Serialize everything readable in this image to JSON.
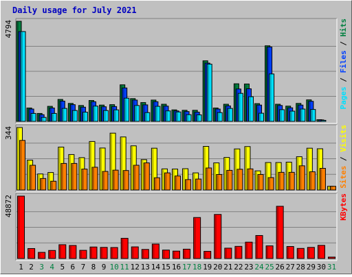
{
  "chart_data": {
    "type": "bar",
    "title": "Daily usage for July 2021",
    "categories": [
      "1",
      "2",
      "3",
      "4",
      "5",
      "6",
      "7",
      "8",
      "9",
      "10",
      "11",
      "12",
      "13",
      "14",
      "15",
      "16",
      "17",
      "18",
      "19",
      "20",
      "21",
      "22",
      "23",
      "24",
      "25",
      "26",
      "27",
      "28",
      "29",
      "30",
      "31"
    ],
    "weekend_days": [
      "3",
      "4",
      "10",
      "11",
      "17",
      "18",
      "24",
      "25",
      "31"
    ],
    "ylim_labels": {
      "top": "4794",
      "mid": "344",
      "bottom": "48872"
    },
    "legend_top": [
      "Pages",
      "Files",
      "Hits"
    ],
    "legend_mid": [
      "Sites",
      "Visits"
    ],
    "legend_bottom": [
      "KBytes"
    ],
    "grid": true,
    "panels": [
      {
        "name": "top",
        "max": 4794,
        "series": [
          {
            "name": "Hits",
            "color": "#008040",
            "values": [
              4794,
              640,
              380,
              720,
              1050,
              860,
              760,
              1000,
              780,
              800,
              1750,
              1090,
              900,
              1020,
              820,
              550,
              530,
              530,
              2900,
              640,
              820,
              1800,
              1790,
              850,
              3620,
              820,
              730,
              860,
              1030,
              80,
              0
            ]
          },
          {
            "name": "Files",
            "color": "#0040ff",
            "values": [
              4300,
              590,
              320,
              640,
              970,
              800,
              680,
              940,
              700,
              710,
              1600,
              1020,
              790,
              940,
              730,
              500,
              470,
              440,
              2790,
              590,
              740,
              1550,
              1560,
              780,
              3560,
              760,
              650,
              780,
              960,
              70,
              0
            ]
          },
          {
            "name": "Pages",
            "color": "#00e0ff",
            "values": [
              4300,
              380,
              190,
              380,
              620,
              520,
              440,
              730,
              520,
              550,
              1110,
              760,
              420,
              720,
              500,
              450,
              320,
              310,
              2740,
              420,
              620,
              1340,
              1180,
              390,
              2270,
              560,
              490,
              590,
              570,
              50,
              0
            ]
          }
        ]
      },
      {
        "name": "mid",
        "max": 344,
        "series": [
          {
            "name": "Visits",
            "color": "#ffff00",
            "values": [
              344,
              164,
              88,
              96,
              236,
              195,
              178,
              267,
              231,
              313,
              292,
              243,
              167,
              230,
              116,
              115,
              117,
              94,
              240,
              149,
              179,
              226,
              239,
              105,
              151,
              151,
              153,
              183,
              230,
              227,
              20
            ]
          },
          {
            "name": "Sites",
            "color": "#ff8000",
            "values": [
              273,
              136,
              63,
              48,
              146,
              146,
              115,
              125,
              102,
              109,
              107,
              136,
              149,
              67,
              94,
              77,
              57,
              60,
              121,
              85,
              108,
              114,
              116,
              85,
              68,
              97,
              97,
              133,
              100,
              119,
              20
            ]
          }
        ]
      },
      {
        "name": "bottom",
        "max": 48872,
        "series": [
          {
            "name": "KBytes",
            "color": "#ff0000",
            "values": [
              48872,
              7800,
              4800,
              6300,
              10800,
              10200,
              6400,
              9000,
              8700,
              8600,
              15800,
              9100,
              7100,
              11300,
              6600,
              5800,
              7300,
              32100,
              5600,
              34500,
              8100,
              9500,
              12800,
              18000,
              9900,
              40900,
              9400,
              7900,
              8700,
              10300,
              1100
            ]
          }
        ]
      }
    ]
  }
}
